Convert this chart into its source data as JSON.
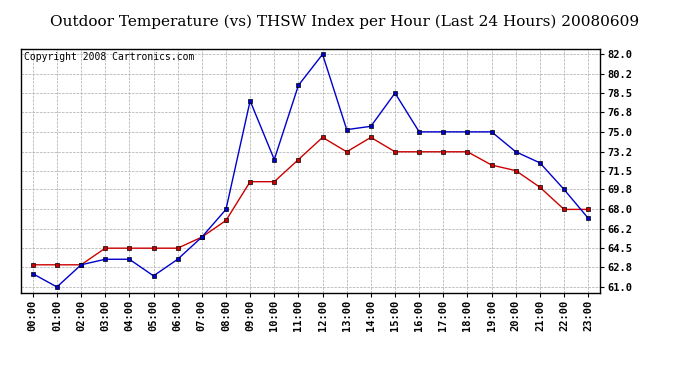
{
  "title": "Outdoor Temperature (vs) THSW Index per Hour (Last 24 Hours) 20080609",
  "copyright": "Copyright 2008 Cartronics.com",
  "hours": [
    "00:00",
    "01:00",
    "02:00",
    "03:00",
    "04:00",
    "05:00",
    "06:00",
    "07:00",
    "08:00",
    "09:00",
    "10:00",
    "11:00",
    "12:00",
    "13:00",
    "14:00",
    "15:00",
    "16:00",
    "17:00",
    "18:00",
    "19:00",
    "20:00",
    "21:00",
    "22:00",
    "23:00"
  ],
  "temp": [
    63.0,
    63.0,
    63.0,
    64.5,
    64.5,
    64.5,
    64.5,
    65.5,
    67.0,
    70.5,
    70.5,
    72.5,
    74.5,
    73.2,
    74.5,
    73.2,
    73.2,
    73.2,
    73.2,
    72.0,
    71.5,
    70.0,
    68.0,
    68.0
  ],
  "thsw": [
    62.2,
    61.0,
    63.0,
    63.5,
    63.5,
    62.0,
    63.5,
    65.5,
    68.0,
    77.8,
    72.5,
    79.2,
    82.0,
    75.2,
    75.5,
    78.5,
    75.0,
    75.0,
    75.0,
    75.0,
    73.2,
    72.2,
    69.8,
    67.2
  ],
  "temp_color": "#cc0000",
  "thsw_color": "#0000cc",
  "bg_color": "#ffffff",
  "grid_color": "#aaaaaa",
  "yticks": [
    61.0,
    62.8,
    64.5,
    66.2,
    68.0,
    69.8,
    71.5,
    73.2,
    75.0,
    76.8,
    78.5,
    80.2,
    82.0
  ],
  "ymin": 60.5,
  "ymax": 82.5,
  "marker": "s",
  "markersize": 3.0,
  "title_fontsize": 11,
  "copyright_fontsize": 7,
  "tick_fontsize": 7.5
}
